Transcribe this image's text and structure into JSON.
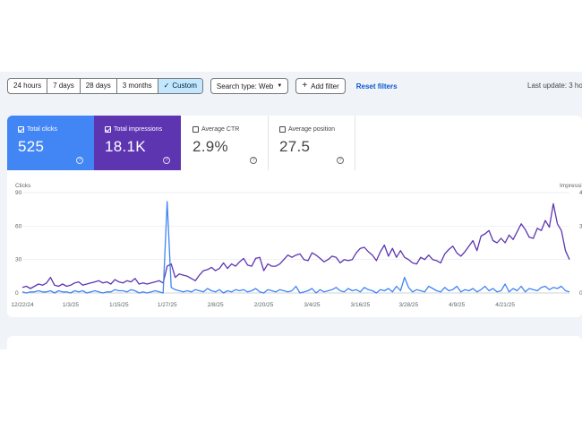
{
  "filters": {
    "date_ranges": [
      "24 hours",
      "7 days",
      "28 days",
      "3 months"
    ],
    "custom_label": "Custom",
    "custom_check": "✓",
    "search_type": "Search type: Web",
    "add_filter": "Add filter",
    "reset_filters": "Reset filters",
    "last_update": "Last update: 3 ho"
  },
  "metrics": [
    {
      "label": "Total clicks",
      "value": "525",
      "checked": true,
      "color": "#4285f4"
    },
    {
      "label": "Total impressions",
      "value": "18.1K",
      "checked": true,
      "color": "#5e35b1"
    },
    {
      "label": "Average CTR",
      "value": "2.9%",
      "checked": false
    },
    {
      "label": "Average position",
      "value": "27.5",
      "checked": false
    }
  ],
  "help_glyph": "?",
  "chart_data": {
    "type": "line",
    "left_axis_title": "Clicks",
    "right_axis_title": "Impressi",
    "left_ticks": [
      "90",
      "60",
      "30",
      "0"
    ],
    "left_tick_values": [
      90,
      60,
      30,
      0
    ],
    "right_ticks": [
      "4",
      "3",
      "",
      "0"
    ],
    "ylim": [
      0,
      90
    ],
    "x_tick_labels": [
      "12/22/24",
      "1/3/25",
      "1/15/25",
      "1/27/25",
      "2/8/25",
      "2/20/25",
      "3/4/25",
      "3/16/25",
      "3/28/25",
      "4/9/25",
      "4/21/25"
    ],
    "x_tick_index": [
      0,
      12,
      24,
      36,
      48,
      60,
      72,
      84,
      96,
      108,
      120
    ],
    "series": [
      {
        "name": "Impressions",
        "color": "#5e35b1",
        "values": [
          5,
          6,
          4,
          6,
          8,
          7,
          9,
          14,
          7,
          6,
          8,
          6,
          7,
          9,
          10,
          7,
          8,
          9,
          10,
          11,
          9,
          10,
          8,
          12,
          10,
          9,
          11,
          10,
          13,
          8,
          9,
          8,
          9,
          10,
          11,
          9,
          24,
          26,
          14,
          17,
          16,
          15,
          13,
          11,
          16,
          20,
          21,
          23,
          20,
          22,
          27,
          22,
          26,
          24,
          28,
          31,
          25,
          24,
          31,
          32,
          20,
          26,
          24,
          24,
          26,
          30,
          34,
          32,
          34,
          35,
          30,
          29,
          36,
          34,
          31,
          28,
          30,
          33,
          32,
          27,
          30,
          29,
          30,
          36,
          40,
          41,
          37,
          34,
          29,
          37,
          43,
          33,
          40,
          32,
          38,
          32,
          30,
          27,
          26,
          32,
          30,
          34,
          30,
          29,
          27,
          35,
          39,
          42,
          36,
          33,
          37,
          42,
          47,
          38,
          51,
          53,
          56,
          47,
          45,
          49,
          45,
          52,
          48,
          55,
          62,
          57,
          50,
          49,
          58,
          56,
          65,
          59,
          80,
          62,
          56,
          38,
          30
        ],
        "values_note_skip": false
      },
      {
        "name": "Clicks",
        "color": "#4285f4",
        "values": [
          1,
          0,
          1,
          1,
          2,
          1,
          1,
          2,
          0,
          2,
          1,
          1,
          0,
          2,
          1,
          2,
          0,
          1,
          2,
          1,
          0,
          1,
          1,
          3,
          2,
          2,
          1,
          3,
          2,
          0,
          1,
          0,
          1,
          2,
          1,
          0,
          82,
          5,
          3,
          2,
          1,
          2,
          1,
          3,
          2,
          1,
          4,
          2,
          1,
          3,
          0,
          2,
          1,
          3,
          2,
          3,
          1,
          2,
          4,
          1,
          0,
          3,
          2,
          1,
          3,
          2,
          1,
          2,
          6,
          0,
          1,
          2,
          4,
          0,
          3,
          1,
          2,
          3,
          5,
          2,
          1,
          4,
          2,
          3,
          1,
          5,
          3,
          2,
          0,
          3,
          2,
          4,
          1,
          6,
          2,
          14,
          5,
          1,
          3,
          2,
          1,
          6,
          4,
          2,
          1,
          5,
          2,
          3,
          6,
          1,
          3,
          2,
          4,
          1,
          3,
          6,
          2,
          4,
          1,
          2,
          8,
          1,
          4,
          2,
          6,
          1,
          4,
          3,
          2,
          5,
          6,
          3,
          5,
          4,
          6,
          2,
          1
        ]
      }
    ]
  }
}
